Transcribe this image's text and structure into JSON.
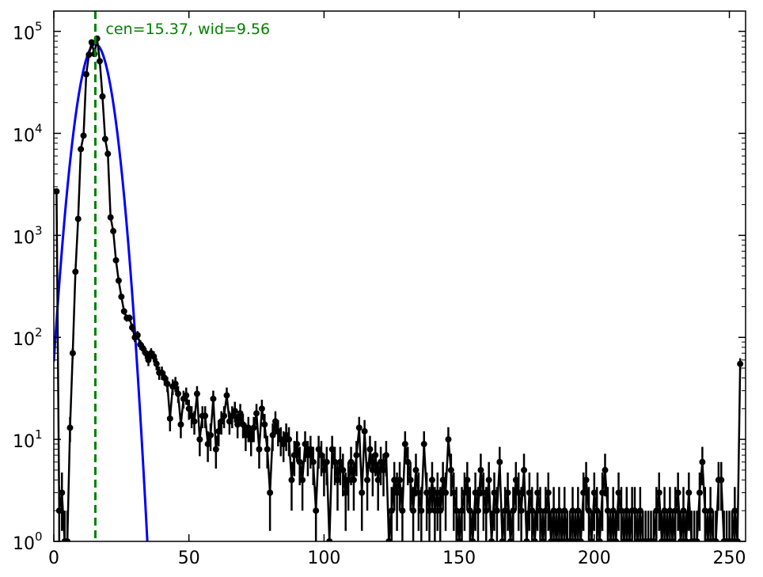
{
  "chart_data": {
    "type": "line",
    "title": "",
    "xlabel": "",
    "ylabel": "",
    "xlim": [
      0,
      256
    ],
    "ylim": [
      1,
      158000
    ],
    "yscale": "log",
    "grid": false,
    "x_ticks": [
      {
        "value": 0,
        "label": "0"
      },
      {
        "value": 50,
        "label": "50"
      },
      {
        "value": 100,
        "label": "100"
      },
      {
        "value": 150,
        "label": "150"
      },
      {
        "value": 200,
        "label": "200"
      },
      {
        "value": 250,
        "label": "250"
      }
    ],
    "y_ticks": [
      {
        "value": 1,
        "base": "10",
        "exp": "0"
      },
      {
        "value": 10,
        "base": "10",
        "exp": "1"
      },
      {
        "value": 100,
        "base": "10",
        "exp": "2"
      },
      {
        "value": 1000,
        "base": "10",
        "exp": "3"
      },
      {
        "value": 10000,
        "base": "10",
        "exp": "4"
      },
      {
        "value": 100000,
        "base": "10",
        "exp": "5"
      }
    ],
    "annotation": {
      "text": "cen=15.37, wid=9.56",
      "x": 15.37
    },
    "colors": {
      "data": "#000000",
      "fit": "#0000ff",
      "center_line": "#008000"
    },
    "fit": {
      "center": 15.37,
      "width": 9.56,
      "amplitude": 75000
    },
    "series": [
      {
        "points": [
          [
            1,
            2700
          ],
          [
            2,
            2
          ],
          [
            3,
            3
          ],
          [
            4,
            1
          ],
          [
            5,
            1
          ],
          [
            6,
            13
          ],
          [
            7,
            70
          ],
          [
            8,
            440
          ],
          [
            9,
            1450
          ],
          [
            10,
            7000
          ],
          [
            11,
            9500
          ],
          [
            12,
            38000
          ],
          [
            13,
            59000
          ],
          [
            14,
            78000
          ],
          [
            15,
            60000
          ],
          [
            16,
            85000
          ],
          [
            17,
            51000
          ],
          [
            18,
            23000
          ],
          [
            19,
            8800
          ],
          [
            20,
            6300
          ],
          [
            21,
            1500
          ],
          [
            22,
            1100
          ],
          [
            23,
            570
          ],
          [
            24,
            360
          ],
          [
            25,
            250
          ],
          [
            26,
            180
          ],
          [
            27,
            155
          ],
          [
            28,
            155
          ],
          [
            29,
            125
          ],
          [
            30,
            100
          ],
          [
            31,
            105
          ],
          [
            32,
            85
          ],
          [
            33,
            78
          ],
          [
            34,
            70
          ],
          [
            35,
            60
          ],
          [
            36,
            70
          ],
          [
            37,
            65
          ],
          [
            38,
            55
          ],
          [
            39,
            45
          ],
          [
            40,
            45
          ],
          [
            41,
            40
          ],
          [
            42,
            35
          ],
          [
            43,
            16
          ],
          [
            44,
            33
          ],
          [
            45,
            35
          ],
          [
            46,
            28
          ],
          [
            47,
            14
          ],
          [
            48,
            25
          ],
          [
            49,
            27
          ],
          [
            50,
            20
          ],
          [
            51,
            17
          ],
          [
            52,
            15
          ],
          [
            53,
            28
          ],
          [
            54,
            10
          ],
          [
            55,
            17
          ],
          [
            56,
            17
          ],
          [
            57,
            9
          ],
          [
            58,
            11
          ],
          [
            59,
            25
          ],
          [
            60,
            8
          ],
          [
            61,
            12
          ],
          [
            62,
            15
          ],
          [
            63,
            17
          ],
          [
            64,
            27
          ],
          [
            65,
            15
          ],
          [
            66,
            17
          ],
          [
            67,
            19
          ],
          [
            68,
            14
          ],
          [
            69,
            18
          ],
          [
            70,
            14
          ],
          [
            71,
            11
          ],
          [
            72,
            13
          ],
          [
            73,
            10
          ],
          [
            74,
            13
          ],
          [
            75,
            18
          ],
          [
            76,
            8
          ],
          [
            77,
            20
          ],
          [
            78,
            14
          ],
          [
            79,
            8
          ],
          [
            80,
            3
          ],
          [
            81,
            11
          ],
          [
            82,
            15
          ],
          [
            83,
            12
          ],
          [
            84,
            10
          ],
          [
            85,
            9
          ],
          [
            86,
            11
          ],
          [
            87,
            10
          ],
          [
            88,
            4
          ],
          [
            89,
            7
          ],
          [
            90,
            9
          ],
          [
            91,
            6
          ],
          [
            92,
            4
          ],
          [
            93,
            9
          ],
          [
            94,
            7
          ],
          [
            95,
            8
          ],
          [
            96,
            6
          ],
          [
            97,
            2
          ],
          [
            98,
            8
          ],
          [
            99,
            7
          ],
          [
            100,
            5
          ],
          [
            101,
            6
          ],
          [
            102,
            1
          ],
          [
            103,
            8
          ],
          [
            104,
            6
          ],
          [
            105,
            4
          ],
          [
            106,
            6
          ],
          [
            107,
            5
          ],
          [
            108,
            3
          ],
          [
            109,
            4
          ],
          [
            110,
            6
          ],
          [
            111,
            4
          ],
          [
            112,
            7
          ],
          [
            113,
            13
          ],
          [
            114,
            3
          ],
          [
            115,
            12
          ],
          [
            116,
            4
          ],
          [
            117,
            8
          ],
          [
            118,
            5
          ],
          [
            119,
            7
          ],
          [
            120,
            4
          ],
          [
            121,
            6
          ],
          [
            122,
            5
          ],
          [
            123,
            7
          ],
          [
            124,
            1
          ],
          [
            125,
            2
          ],
          [
            126,
            4
          ],
          [
            127,
            3
          ],
          [
            128,
            4
          ],
          [
            129,
            2
          ],
          [
            130,
            9
          ],
          [
            131,
            6
          ],
          [
            132,
            4
          ],
          [
            133,
            2
          ],
          [
            134,
            5
          ],
          [
            135,
            3
          ],
          [
            136,
            2
          ],
          [
            137,
            9
          ],
          [
            138,
            3
          ],
          [
            139,
            2
          ],
          [
            140,
            4
          ],
          [
            141,
            2
          ],
          [
            142,
            3
          ],
          [
            143,
            2
          ],
          [
            144,
            4
          ],
          [
            145,
            3
          ],
          [
            146,
            10
          ],
          [
            147,
            5
          ],
          [
            148,
            3
          ],
          [
            149,
            2
          ],
          [
            150,
            1
          ],
          [
            151,
            2
          ],
          [
            152,
            3
          ],
          [
            153,
            4
          ],
          [
            154,
            2
          ],
          [
            155,
            1
          ],
          [
            156,
            3
          ],
          [
            157,
            2
          ],
          [
            158,
            5
          ],
          [
            159,
            3
          ],
          [
            160,
            2
          ],
          [
            161,
            4
          ],
          [
            162,
            1
          ],
          [
            163,
            3
          ],
          [
            164,
            2
          ],
          [
            165,
            6
          ],
          [
            166,
            1
          ],
          [
            167,
            2
          ],
          [
            168,
            3
          ],
          [
            169,
            1
          ],
          [
            170,
            2
          ],
          [
            171,
            4
          ],
          [
            172,
            3
          ],
          [
            173,
            2
          ],
          [
            174,
            5
          ],
          [
            175,
            1
          ],
          [
            176,
            3
          ],
          [
            177,
            2
          ],
          [
            178,
            1
          ],
          [
            179,
            3
          ],
          [
            180,
            2
          ],
          [
            181,
            1
          ],
          [
            182,
            2
          ],
          [
            183,
            3
          ],
          [
            184,
            1
          ],
          [
            185,
            2
          ],
          [
            186,
            1
          ],
          [
            187,
            2
          ],
          [
            188,
            1
          ],
          [
            189,
            2
          ],
          [
            190,
            1
          ],
          [
            191,
            1
          ],
          [
            192,
            2
          ],
          [
            193,
            1
          ],
          [
            194,
            2
          ],
          [
            195,
            1
          ],
          [
            196,
            3
          ],
          [
            197,
            4
          ],
          [
            198,
            2
          ],
          [
            199,
            1
          ],
          [
            200,
            3
          ],
          [
            201,
            2
          ],
          [
            202,
            1
          ],
          [
            203,
            3
          ],
          [
            204,
            5
          ],
          [
            205,
            2
          ],
          [
            206,
            1
          ],
          [
            207,
            2
          ],
          [
            208,
            1
          ],
          [
            209,
            3
          ],
          [
            210,
            2
          ],
          [
            211,
            1
          ],
          [
            212,
            2
          ],
          [
            213,
            1
          ],
          [
            214,
            2
          ],
          [
            215,
            2
          ],
          [
            216,
            1
          ],
          [
            217,
            2
          ],
          [
            218,
            1
          ],
          [
            219,
            1
          ],
          [
            220,
            1
          ],
          [
            221,
            1
          ],
          [
            222,
            1
          ],
          [
            223,
            2
          ],
          [
            224,
            3
          ],
          [
            225,
            1
          ],
          [
            226,
            2
          ],
          [
            227,
            1
          ],
          [
            228,
            2
          ],
          [
            229,
            1
          ],
          [
            230,
            2
          ],
          [
            231,
            3
          ],
          [
            232,
            1
          ],
          [
            233,
            2
          ],
          [
            234,
            1
          ],
          [
            235,
            3
          ],
          [
            236,
            1
          ],
          [
            237,
            1
          ],
          [
            238,
            1
          ],
          [
            239,
            3
          ],
          [
            240,
            6
          ],
          [
            241,
            2
          ],
          [
            242,
            1
          ],
          [
            243,
            2
          ],
          [
            244,
            1
          ],
          [
            245,
            1
          ],
          [
            246,
            4
          ],
          [
            247,
            4
          ],
          [
            248,
            1
          ],
          [
            249,
            1
          ],
          [
            250,
            1
          ],
          [
            251,
            1
          ],
          [
            252,
            2
          ],
          [
            253,
            1
          ],
          [
            254,
            55
          ]
        ]
      }
    ]
  }
}
